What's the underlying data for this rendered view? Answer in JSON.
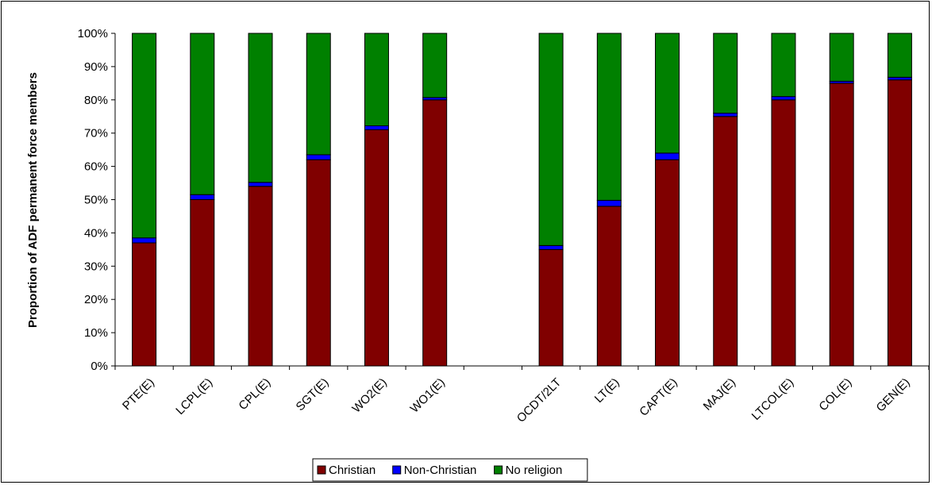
{
  "chart_data": {
    "type": "bar",
    "stacked": true,
    "percent": true,
    "ylabel": "Proportion of ADF permanent force members",
    "ylim": [
      0,
      100
    ],
    "yticks": [
      "0%",
      "10%",
      "20%",
      "30%",
      "40%",
      "50%",
      "60%",
      "70%",
      "80%",
      "90%",
      "100%"
    ],
    "categories": [
      "PTE(E)",
      "LCPL(E)",
      "CPL(E)",
      "SGT(E)",
      "WO2(E)",
      "WO1(E)",
      "",
      "OCDT/2LT",
      "LT(E)",
      "CAPT(E)",
      "MAJ(E)",
      "LTCOL(E)",
      "COL(E)",
      "GEN(E)"
    ],
    "series": [
      {
        "name": "Christian",
        "color": "#800000",
        "values": [
          37,
          50,
          54,
          62,
          71,
          80,
          null,
          35,
          48,
          62,
          75,
          80,
          85,
          86
        ]
      },
      {
        "name": "Non-Christian",
        "color": "#0000ff",
        "values": [
          1.5,
          1.5,
          1.2,
          1.5,
          1.2,
          0.7,
          null,
          1.2,
          1.8,
          2.0,
          1.0,
          1.0,
          0.6,
          0.8
        ]
      },
      {
        "name": "No religion",
        "color": "#008000",
        "values": [
          61.5,
          48.5,
          44.8,
          36.5,
          27.8,
          19.3,
          null,
          63.8,
          50.2,
          36.0,
          24.0,
          19.0,
          14.4,
          13.2
        ]
      }
    ],
    "legend_position": "bottom",
    "grid": false
  }
}
